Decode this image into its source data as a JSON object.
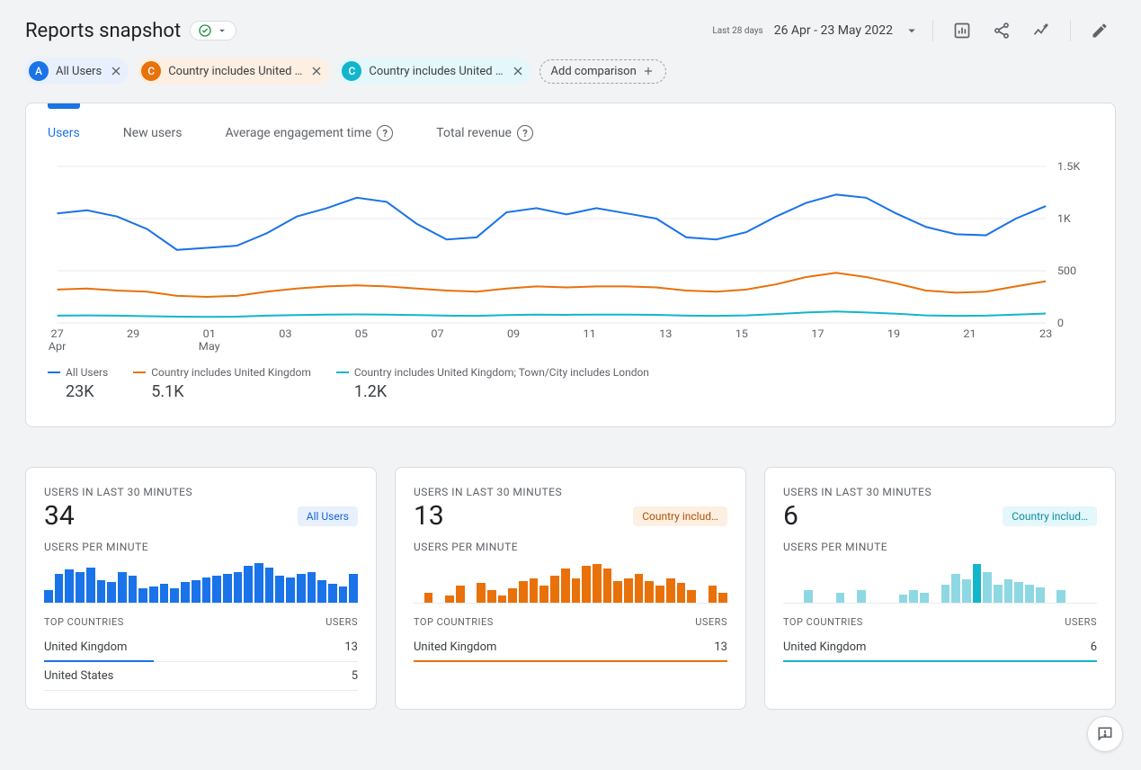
{
  "header": {
    "title": "Reports snapshot",
    "date_prefix": "Last 28 days",
    "date_range": "26 Apr - 23 May 2022"
  },
  "colors": {
    "blue": "#1a73e8",
    "orange": "#e8710a",
    "teal": "#12b5cb",
    "blue_bg": "#e8f0fe",
    "orange_bg": "#feefe3",
    "teal_bg": "#e4f7fb",
    "grey_text": "#5f6368",
    "grid": "#e8eaed"
  },
  "segments": [
    {
      "letter": "A",
      "label": "All Users",
      "color": "#1a73e8",
      "bg": "#e8f0fe",
      "text": "#1967d2"
    },
    {
      "letter": "C",
      "label": "Country includes United …",
      "color": "#e8710a",
      "bg": "#feefe3",
      "text": "#b05200"
    },
    {
      "letter": "C",
      "label": "Country includes United …",
      "color": "#12b5cb",
      "bg": "#e4f7fb",
      "text": "#0d8ea0"
    }
  ],
  "add_comparison_label": "Add comparison",
  "metric_tabs": [
    {
      "label": "Users",
      "active": true,
      "help": false
    },
    {
      "label": "New users",
      "active": false,
      "help": false
    },
    {
      "label": "Average engagement time",
      "active": false,
      "help": true
    },
    {
      "label": "Total revenue",
      "active": false,
      "help": true
    }
  ],
  "chart": {
    "y_max": 1500,
    "y_ticks": [
      "1.5K",
      "1K",
      "500",
      "0"
    ],
    "x_labels": [
      "27",
      "29",
      "01",
      "03",
      "05",
      "07",
      "09",
      "11",
      "13",
      "15",
      "17",
      "19",
      "21",
      "23"
    ],
    "x_sub_labels": {
      "0": "Apr",
      "2": "May"
    },
    "series": [
      {
        "name": "All Users",
        "color": "#1a73e8",
        "width": 2,
        "values": [
          1050,
          1080,
          1020,
          900,
          700,
          720,
          740,
          860,
          1020,
          1100,
          1200,
          1160,
          950,
          800,
          820,
          1060,
          1100,
          1040,
          1100,
          1050,
          1000,
          820,
          800,
          870,
          1020,
          1150,
          1230,
          1200,
          1050,
          920,
          850,
          840,
          1000,
          1120
        ]
      },
      {
        "name": "Country includes United Kingdom",
        "color": "#e8710a",
        "width": 2,
        "values": [
          320,
          330,
          310,
          300,
          260,
          250,
          260,
          300,
          330,
          350,
          360,
          350,
          330,
          310,
          300,
          330,
          350,
          340,
          350,
          350,
          340,
          310,
          300,
          320,
          370,
          440,
          480,
          440,
          380,
          310,
          290,
          300,
          350,
          400
        ]
      },
      {
        "name": "Country includes United Kingdom; Town/City includes London",
        "color": "#12b5cb",
        "width": 2,
        "values": [
          70,
          72,
          70,
          65,
          60,
          58,
          60,
          70,
          75,
          80,
          82,
          80,
          75,
          70,
          68,
          75,
          80,
          78,
          80,
          80,
          78,
          70,
          68,
          72,
          85,
          100,
          110,
          100,
          88,
          72,
          68,
          70,
          80,
          90
        ]
      }
    ],
    "legend_values": [
      "23K",
      "5.1K",
      "1.2K"
    ]
  },
  "realtime": [
    {
      "title": "USERS IN LAST 30 MINUTES",
      "big": "34",
      "badge": "All Users",
      "badge_bg": "#e8f0fe",
      "badge_text": "#1967d2",
      "sub": "USERS PER MINUTE",
      "bar_color": "#1a73e8",
      "bars": [
        12,
        28,
        32,
        30,
        34,
        22,
        20,
        30,
        26,
        14,
        16,
        18,
        14,
        20,
        22,
        24,
        26,
        28,
        30,
        36,
        38,
        34,
        26,
        24,
        28,
        30,
        22,
        18,
        16,
        28
      ],
      "bar_max": 40,
      "top_countries_label": "TOP COUNTRIES",
      "users_label": "USERS",
      "rows": [
        {
          "country": "United Kingdom",
          "users": "13",
          "accent": true
        },
        {
          "country": "United States",
          "users": "5",
          "accent": false
        }
      ],
      "accent_color": "#1a73e8",
      "accent_width": "35%"
    },
    {
      "title": "USERS IN LAST 30 MINUTES",
      "big": "13",
      "badge": "Country includ…",
      "badge_bg": "#feefe3",
      "badge_text": "#b05200",
      "sub": "USERS PER MINUTE",
      "bar_color": "#e8710a",
      "bars": [
        0,
        8,
        0,
        6,
        14,
        0,
        16,
        10,
        6,
        12,
        18,
        20,
        14,
        22,
        28,
        20,
        30,
        32,
        28,
        18,
        20,
        24,
        18,
        14,
        20,
        16,
        10,
        0,
        14,
        8
      ],
      "bar_max": 34,
      "top_countries_label": "TOP COUNTRIES",
      "users_label": "USERS",
      "rows": [
        {
          "country": "United Kingdom",
          "users": "13",
          "accent": true
        }
      ],
      "accent_color": "#e8710a",
      "accent_width": "100%"
    },
    {
      "title": "USERS IN LAST 30 MINUTES",
      "big": "6",
      "badge": "Country includ…",
      "badge_bg": "#e4f7fb",
      "badge_text": "#0d8ea0",
      "sub": "USERS PER MINUTE",
      "bar_color": "#8ed8e4",
      "bar_color_accent": "#12b5cb",
      "bars": [
        0,
        0,
        10,
        0,
        0,
        8,
        0,
        10,
        0,
        0,
        0,
        6,
        10,
        8,
        0,
        14,
        22,
        18,
        30,
        24,
        14,
        18,
        16,
        14,
        12,
        0,
        10,
        0,
        0,
        0
      ],
      "bar_max": 32,
      "accent_bar_index": 18,
      "top_countries_label": "TOP COUNTRIES",
      "users_label": "USERS",
      "rows": [
        {
          "country": "United Kingdom",
          "users": "6",
          "accent": true
        }
      ],
      "accent_color": "#12b5cb",
      "accent_width": "100%"
    }
  ]
}
